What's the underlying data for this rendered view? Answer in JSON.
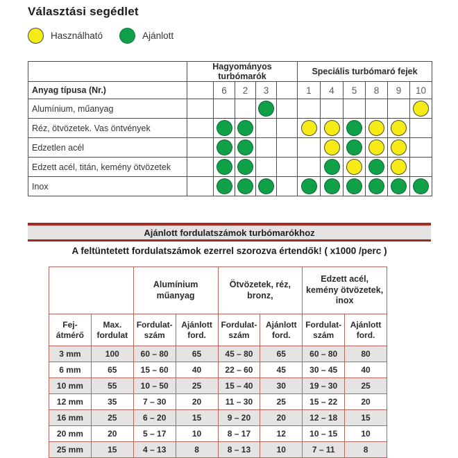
{
  "title": "Választási segédlet",
  "legend": {
    "usable": {
      "label": "Használható"
    },
    "recommended": {
      "label": "Ajánlott"
    }
  },
  "colors": {
    "recommended_green": "#10a04a",
    "usable_yellow": "#f6eb16",
    "banner_red": "#a22c25",
    "banner_gray": "#e4e3e2",
    "selection_border": "#4b4b4b",
    "speed_border": "#b4655c",
    "stripe_gray": "#e5e4e3"
  },
  "selection_table": {
    "group_headers": [
      {
        "label": "Hagyományos turbómarók",
        "span": 5
      },
      {
        "label": "Speciális turbómaró fejek",
        "span": 6
      }
    ],
    "corner_label": "Anyag típusa (Nr.)",
    "number_columns": [
      "",
      "6",
      "2",
      "3",
      "",
      "1",
      "4",
      "5",
      "8",
      "9",
      "10"
    ],
    "dot_legend": {
      "g": "Ajánlott",
      "y": "Használható"
    },
    "rows": [
      {
        "label": "Alumínium, műanyag",
        "dots": [
          "",
          "",
          "",
          "g",
          "",
          "",
          "",
          "",
          "",
          "",
          "y"
        ]
      },
      {
        "label": "Réz, ötvözetek. Vas öntvények",
        "dots": [
          "",
          "g",
          "g",
          "",
          "",
          "y",
          "y",
          "g",
          "y",
          "y",
          ""
        ]
      },
      {
        "label": "Edzetlen acél",
        "dots": [
          "",
          "g",
          "g",
          "",
          "",
          "",
          "y",
          "g",
          "y",
          "y",
          ""
        ]
      },
      {
        "label": "Edzett acél, titán, kemény ötvözetek",
        "dots": [
          "",
          "g",
          "g",
          "",
          "",
          "",
          "g",
          "y",
          "g",
          "y",
          ""
        ]
      },
      {
        "label": "Inox",
        "dots": [
          "",
          "g",
          "g",
          "g",
          "",
          "g",
          "g",
          "g",
          "g",
          "g",
          "g"
        ]
      }
    ]
  },
  "banner": {
    "title": "Ajánlott fordulatszámok turbómarókhoz",
    "subtitle": "A feltüntetett fordulatszámok ezerrel szorozva értendők! ( x1000 /perc )"
  },
  "speed_table": {
    "group_headers": [
      "",
      "Alumínium\nműanyag",
      "Ötvözetek, réz,\nbronz,",
      "Edzett acél,\nkemény ötvözetek,\ninox"
    ],
    "column_headers": [
      "Fej-\nátmérő",
      "Max.\nfordulat",
      "Fordulat-\nszám",
      "Ajánlott\nford.",
      "Fordulat-\nszám",
      "Ajánlott\nford.",
      "Fordulat-\nszám",
      "Ajánlott\nford."
    ],
    "rows": [
      [
        "3 mm",
        "100",
        "60 – 80",
        "65",
        "45 – 80",
        "65",
        "60 – 80",
        "80"
      ],
      [
        "6 mm",
        "65",
        "15 – 60",
        "40",
        "22 – 60",
        "45",
        "30 – 45",
        "40"
      ],
      [
        "10 mm",
        "55",
        "10 – 50",
        "25",
        "15 – 40",
        "30",
        "19 – 30",
        "25"
      ],
      [
        "12 mm",
        "35",
        "7 – 30",
        "20",
        "11 – 30",
        "25",
        "15 – 22",
        "20"
      ],
      [
        "16 mm",
        "25",
        "6 – 20",
        "15",
        "9 – 20",
        "20",
        "12 – 18",
        "15"
      ],
      [
        "20 mm",
        "20",
        "5 – 17",
        "10",
        "8 – 17",
        "12",
        "10 – 15",
        "10"
      ],
      [
        "25 mm",
        "15",
        "4 – 13",
        "8",
        "8 – 13",
        "10",
        "7 – 11",
        "8"
      ]
    ]
  }
}
